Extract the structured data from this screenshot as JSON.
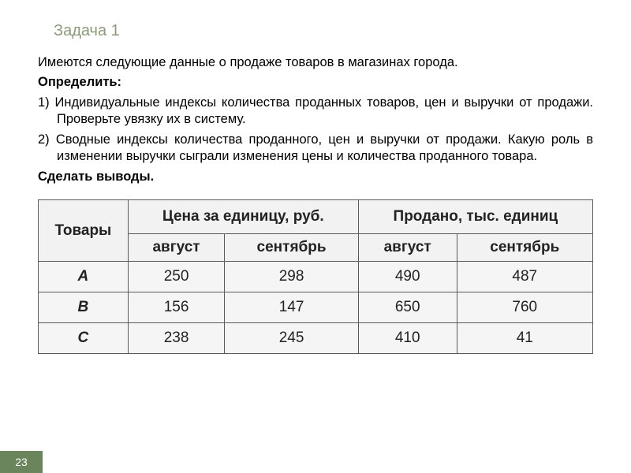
{
  "title": "Задача 1",
  "intro": "Имеются следующие данные о продаже товаров в магазинах города.",
  "determine_label": "Определить:",
  "item1": "1) Индивидуальные индексы количества проданных товаров, цен и выручки от продажи. Проверьте увязку их в систему.",
  "item2": "2) Сводные индексы количества проданного, цен и выручки от продажи. Какую роль в изменении выручки сыграли изменения цены и количества проданного товара.",
  "conclusion": "Сделать выводы.",
  "table": {
    "columns": {
      "goods": "Товары",
      "price_header": "Цена за единицу, руб.",
      "sold_header": "Продано, тыс. единиц",
      "aug": "август",
      "sep": "сентябрь"
    },
    "rows": [
      {
        "name": "А",
        "price_aug": "250",
        "price_sep": "298",
        "sold_aug": "490",
        "sold_sep": "487"
      },
      {
        "name": "В",
        "price_aug": "156",
        "price_sep": "147",
        "sold_aug": "650",
        "sold_sep": "760"
      },
      {
        "name": "С",
        "price_aug": "238",
        "price_sep": "245",
        "sold_aug": "410",
        "sold_sep": "41"
      }
    ],
    "header_bg": "#f2f2f2",
    "cell_bg": "#f5f5f5",
    "border_color": "#5a5a5a",
    "font_size": 19
  },
  "page_number": "23",
  "colors": {
    "title": "#8a9a7a",
    "body": "#000000",
    "badge_bg": "#6a855c",
    "badge_text": "#ffffff",
    "background": "#ffffff"
  }
}
